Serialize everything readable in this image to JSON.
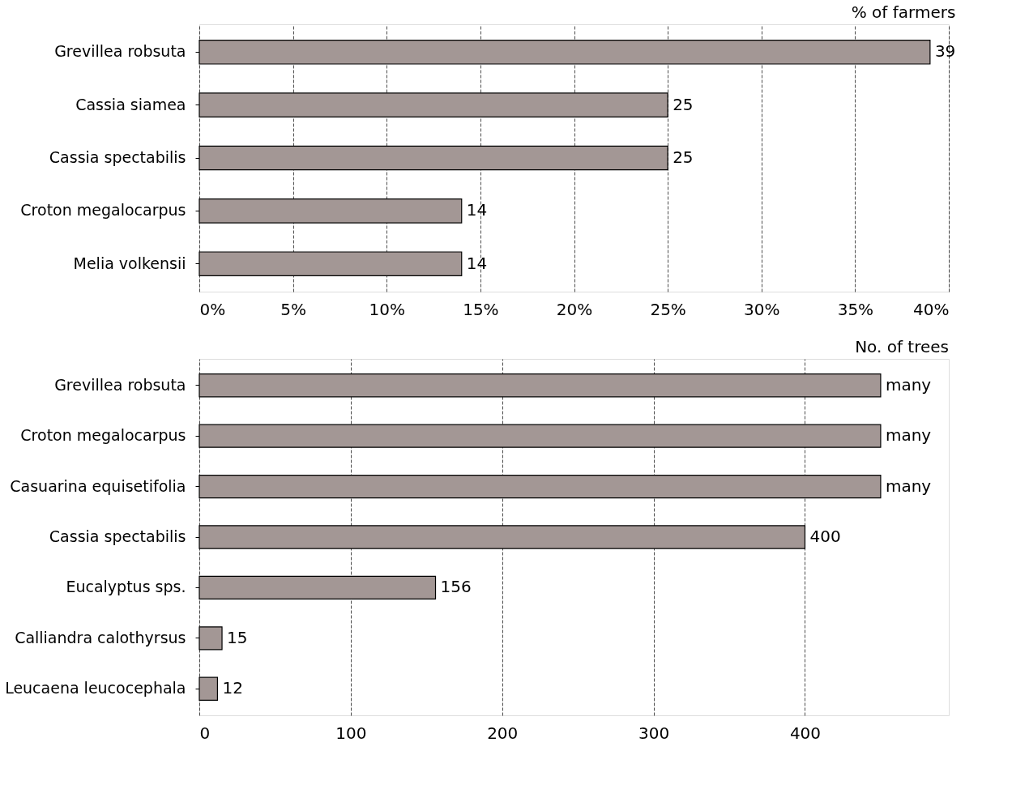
{
  "chart_data": [
    {
      "type": "bar",
      "orientation": "horizontal",
      "title": "% of farmers",
      "categories": [
        "Grevillea  robsuta",
        "Cassia siamea",
        "Cassia spectabilis",
        "Croton megalocarpus",
        "Melia  volkensii"
      ],
      "values": [
        39,
        25,
        25,
        14,
        14
      ],
      "color": "#a39795",
      "xlim": [
        0,
        40
      ],
      "xticks": [
        {
          "value": 0,
          "label": "0%"
        },
        {
          "value": 5,
          "label": "5%"
        },
        {
          "value": 10,
          "label": "10%"
        },
        {
          "value": 15,
          "label": "15%"
        },
        {
          "value": 20,
          "label": "20%"
        },
        {
          "value": 25,
          "label": "25%"
        },
        {
          "value": 30,
          "label": "30%"
        },
        {
          "value": 35,
          "label": "35%"
        },
        {
          "value": 40,
          "label": "40%"
        }
      ],
      "grid": "x",
      "data_labels": true
    },
    {
      "type": "bar",
      "orientation": "horizontal",
      "title": "No. of trees",
      "categories": [
        "Grevillea robsuta",
        "Croton megalocarpus",
        "Casuarina equisetifolia",
        "Cassia spectabilis",
        "Eucalyptus sps.",
        "Calliandra  calothyrsus",
        "Leucaena leucocephala"
      ],
      "values": [
        450,
        450,
        450,
        400,
        156,
        15,
        12
      ],
      "color": "#a39795",
      "value_labels": [
        "many",
        "many",
        "many",
        "400",
        "156",
        "15",
        "12"
      ],
      "xlim": [
        0,
        495
      ],
      "xticks": [
        0,
        100,
        200,
        300,
        400
      ],
      "grid": "x"
    }
  ]
}
